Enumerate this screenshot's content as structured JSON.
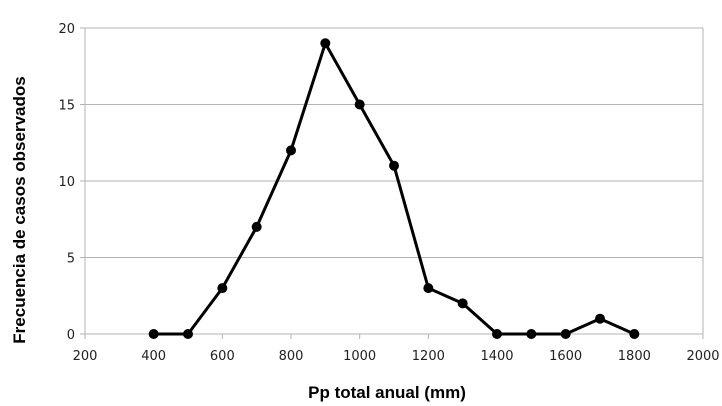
{
  "chart_data": {
    "type": "line",
    "xlabel": "Pp total anual (mm)",
    "ylabel": "Frecuencia de casos observados",
    "xlim": [
      200,
      2000
    ],
    "ylim": [
      0,
      20
    ],
    "x_ticks": [
      "200",
      "400",
      "600",
      "800",
      "1000",
      "1200",
      "1400",
      "1600",
      "1800",
      "2000"
    ],
    "y_ticks": [
      "0",
      "5",
      "10",
      "15",
      "20"
    ],
    "grid": "horizontal",
    "legend": "none",
    "series": [
      {
        "x": [
          400,
          500,
          600,
          700,
          800,
          900,
          1000,
          1100,
          1200,
          1300,
          1400,
          1500,
          1600,
          1700,
          1800
        ],
        "values": [
          0,
          0,
          3,
          7,
          12,
          19,
          15,
          11,
          3,
          2,
          0,
          0,
          0,
          1,
          0
        ]
      }
    ],
    "colors": {
      "line": "#000000",
      "grid": "#b3b3b3",
      "axis": "#b3b3b3"
    }
  }
}
